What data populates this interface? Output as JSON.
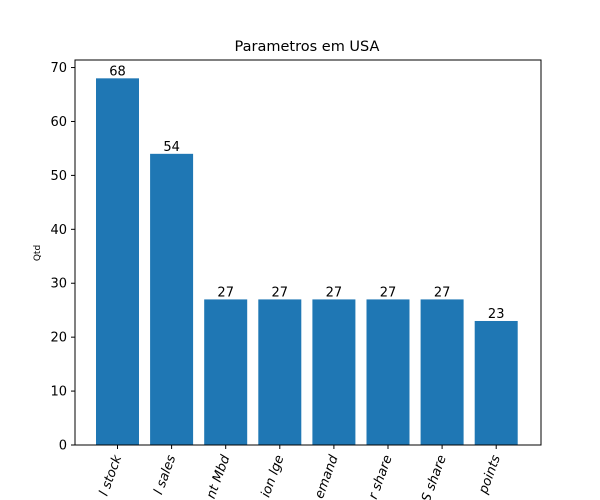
{
  "chart_data": {
    "type": "bar",
    "title": "Parametros em USA",
    "xlabel": "",
    "ylabel": "Qtd",
    "ylim": [
      0,
      71.4
    ],
    "yticks": [
      0,
      10,
      20,
      30,
      40,
      50,
      60,
      70
    ],
    "grid": false,
    "categories": [
      "l stock",
      "l sales",
      "nt Mbd",
      "ion lge",
      "emand",
      "r share",
      "S share",
      "points"
    ],
    "values": [
      68,
      54,
      27,
      27,
      27,
      27,
      27,
      23
    ],
    "bar_color": "#1f77b4"
  }
}
